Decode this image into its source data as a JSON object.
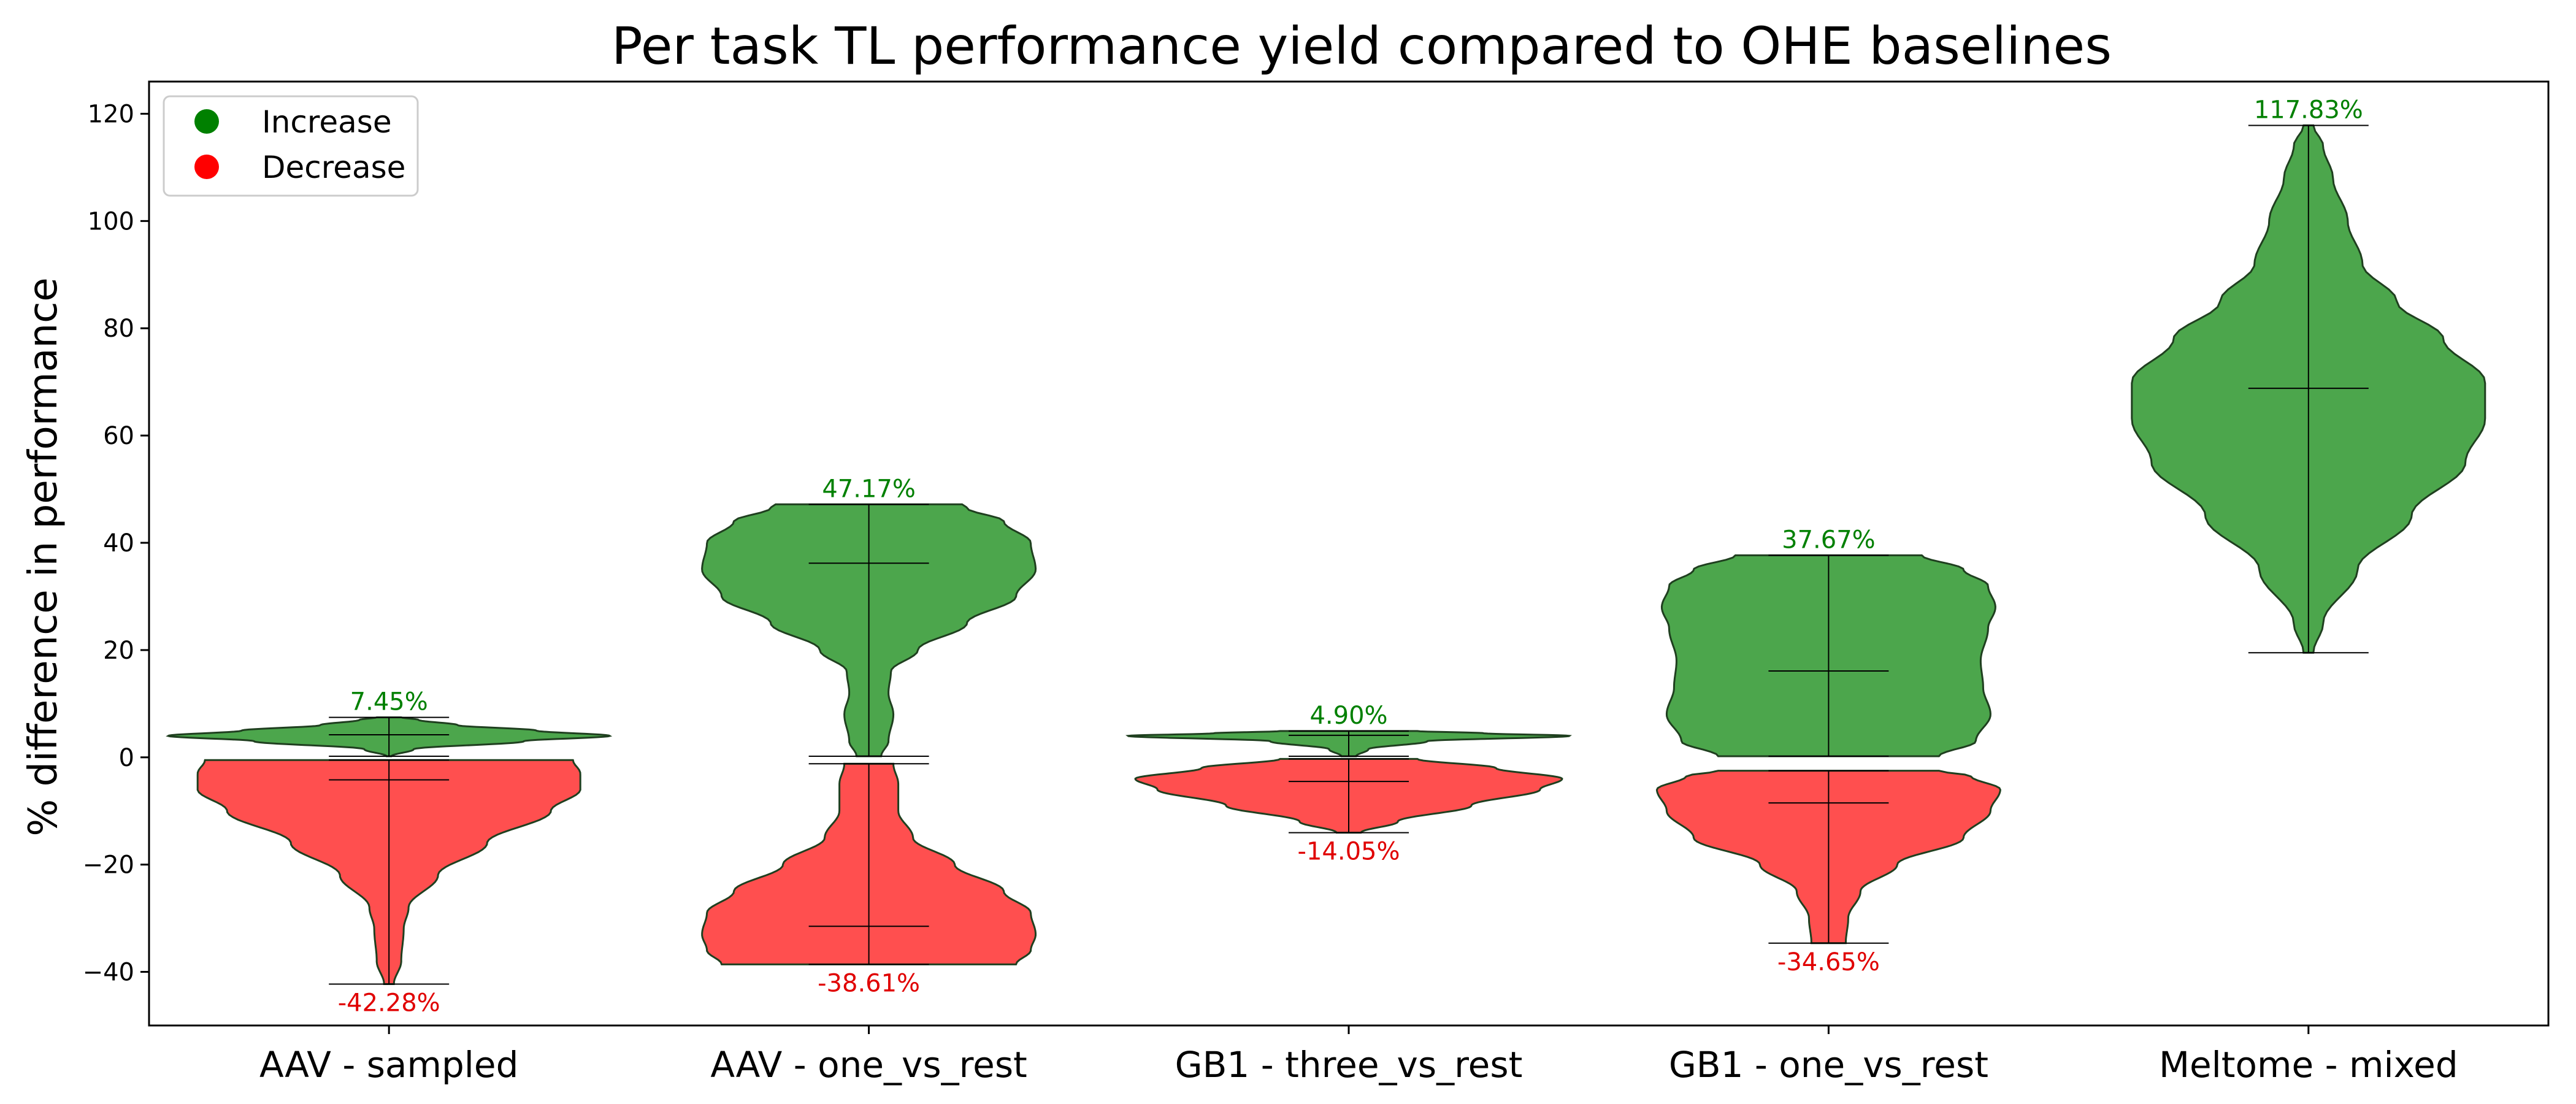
{
  "chart_data": {
    "type": "violin",
    "title": "Per task TL performance yield compared to OHE baselines",
    "xlabel": "",
    "ylabel": "% difference in performance",
    "ylim": [
      -50,
      126
    ],
    "yticks": [
      -40,
      -20,
      0,
      20,
      40,
      60,
      80,
      100,
      120
    ],
    "ytick_labels": [
      "−40",
      "−20",
      "0",
      "20",
      "40",
      "60",
      "80",
      "100",
      "120"
    ],
    "categories": [
      "AAV - sampled",
      "AAV - one_vs_rest",
      "GB1 - three_vs_rest",
      "GB1 - one_vs_rest",
      "Meltome - mixed"
    ],
    "legend": {
      "position": "top-left",
      "entries": [
        {
          "label": "Increase",
          "color": "#008000"
        },
        {
          "label": "Decrease",
          "color": "#ff0000"
        }
      ]
    },
    "colors": {
      "increase_fill": "#4ca64c",
      "decrease_fill": "#ff4f4f",
      "increase_text": "#008000",
      "decrease_text": "#e00000",
      "outline": "#1f3f1f"
    },
    "series": [
      {
        "name": "Increase",
        "violins": [
          {
            "category": "AAV - sampled",
            "min": 0.2,
            "max": 7.45,
            "mean": 4.2,
            "max_label": "7.45%",
            "profile": [
              [
                0.2,
                0.01
              ],
              [
                1.5,
                0.1
              ],
              [
                3,
                0.55
              ],
              [
                4,
                0.9
              ],
              [
                5,
                0.6
              ],
              [
                6,
                0.28
              ],
              [
                7,
                0.12
              ],
              [
                7.45,
                0.05
              ]
            ]
          },
          {
            "category": "AAV - one_vs_rest",
            "min": 0.2,
            "max": 47.17,
            "mean": 36.2,
            "max_label": "47.17%",
            "profile": [
              [
                0.2,
                0.05
              ],
              [
                3,
                0.08
              ],
              [
                8,
                0.1
              ],
              [
                12,
                0.08
              ],
              [
                16,
                0.09
              ],
              [
                20,
                0.2
              ],
              [
                25,
                0.4
              ],
              [
                30,
                0.6
              ],
              [
                35,
                0.68
              ],
              [
                40,
                0.66
              ],
              [
                44,
                0.55
              ],
              [
                46.5,
                0.4
              ],
              [
                47.17,
                0.38
              ]
            ]
          },
          {
            "category": "GB1 - three_vs_rest",
            "min": 0.2,
            "max": 4.9,
            "mean": 4.1,
            "max_label": "4.90%",
            "profile": [
              [
                0.2,
                0.03
              ],
              [
                1.5,
                0.08
              ],
              [
                3,
                0.32
              ],
              [
                4,
                0.9
              ],
              [
                4.5,
                0.55
              ],
              [
                4.9,
                0.28
              ]
            ]
          },
          {
            "category": "GB1 - one_vs_rest",
            "min": 0.2,
            "max": 37.67,
            "mean": 16.1,
            "max_label": "37.67%",
            "profile": [
              [
                0.2,
                0.45
              ],
              [
                3,
                0.6
              ],
              [
                8,
                0.66
              ],
              [
                13,
                0.63
              ],
              [
                18,
                0.62
              ],
              [
                24,
                0.65
              ],
              [
                28,
                0.68
              ],
              [
                32,
                0.65
              ],
              [
                35,
                0.55
              ],
              [
                37.67,
                0.38
              ]
            ]
          },
          {
            "category": "Meltome - mixed",
            "min": 19.5,
            "max": 117.83,
            "mean": 68.8,
            "max_label": "117.83%",
            "profile": [
              [
                19.5,
                0.02
              ],
              [
                25,
                0.06
              ],
              [
                35,
                0.2
              ],
              [
                45,
                0.42
              ],
              [
                55,
                0.64
              ],
              [
                63,
                0.72
              ],
              [
                70,
                0.72
              ],
              [
                78,
                0.55
              ],
              [
                85,
                0.36
              ],
              [
                92,
                0.22
              ],
              [
                100,
                0.16
              ],
              [
                108,
                0.1
              ],
              [
                114,
                0.06
              ],
              [
                117.83,
                0.02
              ]
            ]
          }
        ]
      },
      {
        "name": "Decrease",
        "violins": [
          {
            "category": "AAV - sampled",
            "min": -42.28,
            "max": -0.5,
            "mean": -4.2,
            "min_label": "-42.28%",
            "profile": [
              [
                -42.28,
                0.02
              ],
              [
                -38,
                0.05
              ],
              [
                -32,
                0.06
              ],
              [
                -28,
                0.08
              ],
              [
                -22,
                0.2
              ],
              [
                -16,
                0.4
              ],
              [
                -10,
                0.66
              ],
              [
                -6,
                0.78
              ],
              [
                -3,
                0.78
              ],
              [
                -0.5,
                0.75
              ]
            ]
          },
          {
            "category": "AAV - one_vs_rest",
            "min": -38.61,
            "max": -1.2,
            "mean": -31.5,
            "min_label": "-38.61%",
            "profile": [
              [
                -38.61,
                0.6
              ],
              [
                -36,
                0.66
              ],
              [
                -33,
                0.68
              ],
              [
                -29,
                0.66
              ],
              [
                -25,
                0.55
              ],
              [
                -20,
                0.35
              ],
              [
                -15,
                0.18
              ],
              [
                -10,
                0.12
              ],
              [
                -5,
                0.12
              ],
              [
                -1.2,
                0.1
              ]
            ]
          },
          {
            "category": "GB1 - three_vs_rest",
            "min": -14.05,
            "max": -0.3,
            "mean": -4.5,
            "min_label": "-14.05%",
            "profile": [
              [
                -14.05,
                0.05
              ],
              [
                -12,
                0.2
              ],
              [
                -9,
                0.5
              ],
              [
                -6,
                0.78
              ],
              [
                -4,
                0.87
              ],
              [
                -2,
                0.6
              ],
              [
                -0.3,
                0.28
              ]
            ]
          },
          {
            "category": "GB1 - one_vs_rest",
            "min": -34.65,
            "max": -2.5,
            "mean": -8.5,
            "min_label": "-34.65%",
            "profile": [
              [
                -34.65,
                0.07
              ],
              [
                -30,
                0.08
              ],
              [
                -25,
                0.13
              ],
              [
                -20,
                0.28
              ],
              [
                -15,
                0.55
              ],
              [
                -10,
                0.66
              ],
              [
                -6,
                0.7
              ],
              [
                -3.5,
                0.58
              ],
              [
                -2.5,
                0.45
              ]
            ]
          }
        ]
      }
    ]
  }
}
